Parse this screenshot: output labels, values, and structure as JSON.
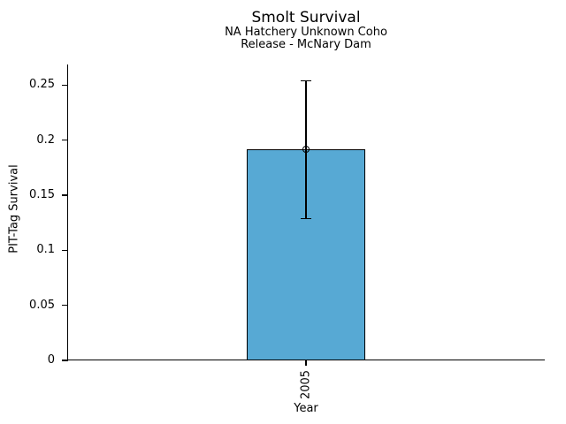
{
  "chart_data": {
    "type": "bar",
    "title": "Smolt Survival",
    "subtitle": [
      "NA Hatchery Unknown Coho",
      "Release - McNary Dam"
    ],
    "xlabel": "Year",
    "ylabel": "PIT-Tag Survival",
    "categories": [
      "2005"
    ],
    "values": [
      0.192
    ],
    "error_low": [
      0.129
    ],
    "error_high": [
      0.254
    ],
    "yticks": [
      0,
      0.05,
      0.1,
      0.15,
      0.2,
      0.25
    ],
    "ytick_labels": [
      "0",
      "0.05",
      "0.1",
      "0.15",
      "0.2",
      "0.25"
    ],
    "ylim": [
      0,
      0.268
    ],
    "grid": false,
    "legend": null,
    "marker": "open-circle",
    "bar_color": "#57A9D4",
    "bar_edge_color": "#000000",
    "axis_color": "#000000",
    "text_color": "#000000"
  }
}
